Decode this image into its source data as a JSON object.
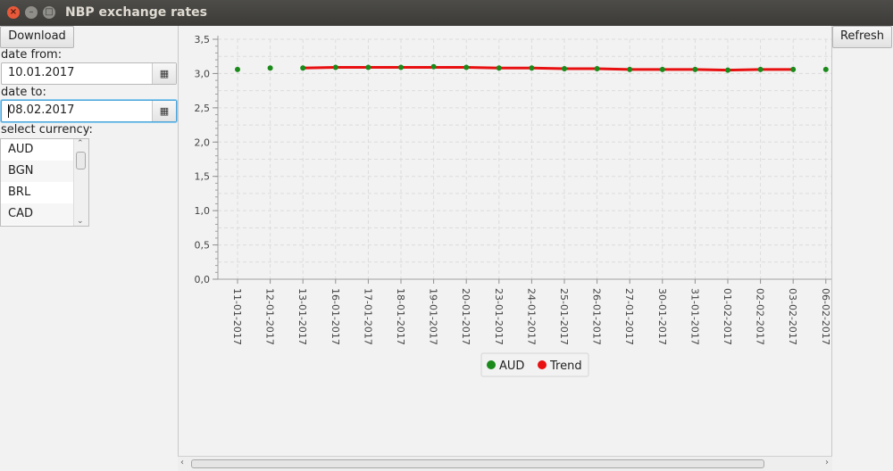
{
  "window": {
    "title": "NBP exchange rates"
  },
  "controls": {
    "download_label": "Download",
    "refresh_label": "Refresh",
    "date_from_label": "date from:",
    "date_from_value": "10.01.2017",
    "date_to_label": "date to:",
    "date_to_value": "08.02.2017",
    "select_currency_label": "select currency:",
    "currencies": [
      "AUD",
      "BGN",
      "BRL",
      "CAD"
    ]
  },
  "icons": {
    "calendar": "calendar-icon",
    "close": "close-icon",
    "minimize": "minimize-icon",
    "maximize": "maximize-icon"
  },
  "colors": {
    "aud": "#1a8a1a",
    "trend": "#e81010"
  },
  "chart_data": {
    "type": "line",
    "categories": [
      "11-01-2017",
      "12-01-2017",
      "13-01-2017",
      "16-01-2017",
      "17-01-2017",
      "18-01-2017",
      "19-01-2017",
      "20-01-2017",
      "23-01-2017",
      "24-01-2017",
      "25-01-2017",
      "26-01-2017",
      "27-01-2017",
      "30-01-2017",
      "31-01-2017",
      "01-02-2017",
      "02-02-2017",
      "03-02-2017",
      "06-02-2017"
    ],
    "yticks": [
      "0,0",
      "0,5",
      "1,0",
      "1,5",
      "2,0",
      "2,5",
      "3,0",
      "3,5"
    ],
    "ylim": [
      0,
      3.5
    ],
    "grid": true,
    "legend_position": "bottom",
    "series": [
      {
        "name": "AUD",
        "style": "points",
        "values": [
          3.06,
          3.08,
          3.08,
          3.09,
          3.09,
          3.09,
          3.1,
          3.09,
          3.08,
          3.08,
          3.07,
          3.07,
          3.06,
          3.06,
          3.06,
          3.05,
          3.06,
          3.06,
          3.06
        ]
      },
      {
        "name": "Trend",
        "style": "line",
        "values": [
          null,
          null,
          3.08,
          3.09,
          3.09,
          3.09,
          3.09,
          3.09,
          3.08,
          3.08,
          3.07,
          3.07,
          3.06,
          3.06,
          3.06,
          3.05,
          3.06,
          3.06,
          null
        ]
      }
    ]
  }
}
